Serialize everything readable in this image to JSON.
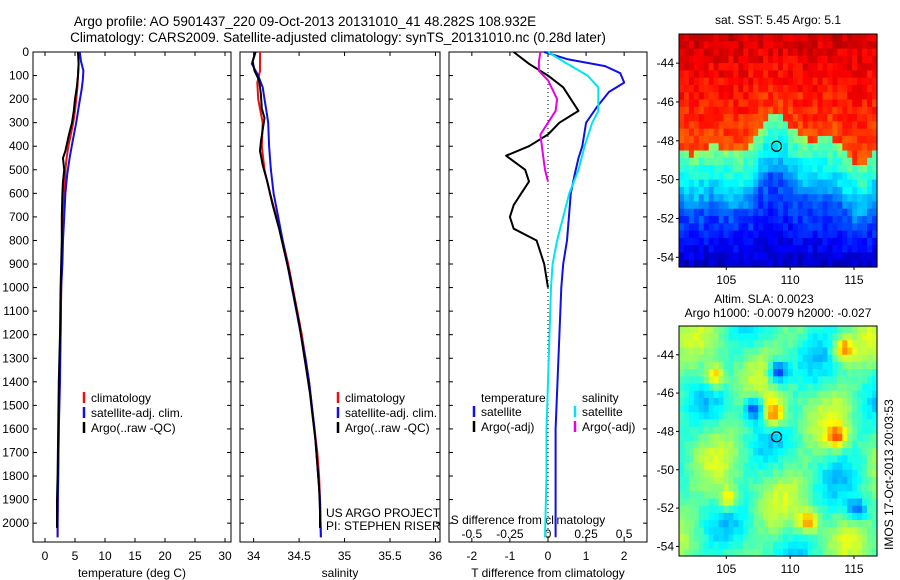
{
  "header": {
    "line1": "Argo profile: AO 5901437_220 09-Oct-2013 20131010_41 48.282S 108.932E",
    "line2": "Climatology: CARS2009. Satellite-adjusted climatology: synTS_20131010.nc (0.28d later)"
  },
  "side_stamp": "IMOS 17-Oct-2013 20:03:53",
  "colors": {
    "climatology": "#e81010",
    "satellite": "#1010e6",
    "argo": "#000000",
    "sat_salinity": "#00e5ee",
    "argo_salinity": "#e800e8"
  },
  "chart_data": [
    {
      "type": "line",
      "xlabel": "temperature (deg C)",
      "ylabel": "",
      "xlim": [
        -2,
        31
      ],
      "ylim": [
        2080,
        0
      ],
      "xticks": [
        0,
        5,
        10,
        15,
        20,
        25,
        30
      ],
      "yticks": [
        0,
        100,
        200,
        300,
        400,
        500,
        600,
        700,
        800,
        900,
        1000,
        1100,
        1200,
        1300,
        1400,
        1500,
        1600,
        1700,
        1800,
        1900,
        2000
      ],
      "legend": [
        "climatology",
        "satellite-adj. clim.",
        "Argo(..raw -QC)"
      ],
      "legend_position": "lower-center",
      "series": [
        {
          "name": "climatology",
          "color": "#e81010",
          "points": [
            [
              5.6,
              0
            ],
            [
              5.6,
              50
            ],
            [
              5.5,
              100
            ],
            [
              5.4,
              150
            ],
            [
              5.2,
              200
            ],
            [
              5.0,
              250
            ],
            [
              4.7,
              300
            ],
            [
              4.3,
              350
            ],
            [
              3.9,
              400
            ],
            [
              3.6,
              450
            ],
            [
              3.4,
              500
            ],
            [
              3.2,
              600
            ],
            [
              3.0,
              700
            ],
            [
              2.9,
              800
            ],
            [
              2.8,
              900
            ],
            [
              2.7,
              1000
            ],
            [
              2.6,
              1200
            ],
            [
              2.4,
              1400
            ],
            [
              2.3,
              1600
            ],
            [
              2.2,
              1800
            ],
            [
              2.1,
              2000
            ],
            [
              2.1,
              2060
            ]
          ]
        },
        {
          "name": "satellite-adj. clim.",
          "color": "#1010e6",
          "points": [
            [
              5.8,
              0
            ],
            [
              6.0,
              40
            ],
            [
              6.4,
              80
            ],
            [
              6.3,
              120
            ],
            [
              6.1,
              160
            ],
            [
              5.7,
              220
            ],
            [
              5.2,
              300
            ],
            [
              4.6,
              380
            ],
            [
              4.1,
              450
            ],
            [
              3.7,
              520
            ],
            [
              3.4,
              600
            ],
            [
              3.2,
              700
            ],
            [
              3.0,
              800
            ],
            [
              2.9,
              900
            ],
            [
              2.7,
              1000
            ],
            [
              2.6,
              1200
            ],
            [
              2.5,
              1400
            ],
            [
              2.3,
              1600
            ],
            [
              2.2,
              1800
            ],
            [
              2.1,
              2000
            ],
            [
              2.1,
              2060
            ]
          ]
        },
        {
          "name": "Argo(..raw -QC)",
          "color": "#000000",
          "points": [
            [
              5.5,
              0
            ],
            [
              5.6,
              50
            ],
            [
              5.5,
              100
            ],
            [
              5.3,
              150
            ],
            [
              5.0,
              200
            ],
            [
              4.8,
              250
            ],
            [
              4.5,
              300
            ],
            [
              4.0,
              350
            ],
            [
              3.4,
              420
            ],
            [
              3.0,
              450
            ],
            [
              3.2,
              500
            ],
            [
              3.0,
              550
            ],
            [
              2.9,
              600
            ],
            [
              2.8,
              700
            ],
            [
              2.8,
              800
            ],
            [
              2.7,
              900
            ],
            [
              2.6,
              1000
            ],
            [
              2.5,
              1200
            ],
            [
              2.3,
              1400
            ],
            [
              2.2,
              1600
            ],
            [
              2.1,
              1800
            ],
            [
              2.0,
              1900
            ],
            [
              2.0,
              2020
            ]
          ]
        }
      ]
    },
    {
      "type": "line",
      "xlabel": "salinity",
      "ylabel": "",
      "xlim": [
        33.85,
        36.05
      ],
      "ylim": [
        2080,
        0
      ],
      "xticks": [
        34,
        34.5,
        35,
        35.5,
        36
      ],
      "xticklabels": [
        "34",
        "34.5",
        "35",
        "35.5",
        "36"
      ],
      "legend": [
        "climatology",
        "satellite-adj. clim.",
        "Argo(..raw -QC)"
      ],
      "legend_position": "lower-right",
      "annotation": [
        "US ARGO PROJECT",
        "PI: STEPHEN RISER"
      ],
      "series": [
        {
          "name": "climatology",
          "color": "#e81010",
          "points": [
            [
              34.07,
              0
            ],
            [
              34.07,
              80
            ],
            [
              34.04,
              130
            ],
            [
              34.05,
              200
            ],
            [
              34.08,
              260
            ],
            [
              34.1,
              300
            ],
            [
              34.09,
              400
            ],
            [
              34.12,
              500
            ],
            [
              34.18,
              600
            ],
            [
              34.25,
              700
            ],
            [
              34.32,
              800
            ],
            [
              34.38,
              900
            ],
            [
              34.43,
              1000
            ],
            [
              34.48,
              1100
            ],
            [
              34.53,
              1200
            ],
            [
              34.57,
              1300
            ],
            [
              34.61,
              1400
            ],
            [
              34.64,
              1500
            ],
            [
              34.67,
              1600
            ],
            [
              34.7,
              1700
            ],
            [
              34.72,
              1800
            ],
            [
              34.73,
              1900
            ],
            [
              34.74,
              2060
            ]
          ]
        },
        {
          "name": "satellite-adj. clim.",
          "color": "#1010e6",
          "points": [
            [
              34.02,
              0
            ],
            [
              33.98,
              50
            ],
            [
              34.05,
              100
            ],
            [
              34.1,
              150
            ],
            [
              34.12,
              200
            ],
            [
              34.14,
              250
            ],
            [
              34.16,
              300
            ],
            [
              34.17,
              400
            ],
            [
              34.19,
              500
            ],
            [
              34.22,
              600
            ],
            [
              34.27,
              700
            ],
            [
              34.32,
              800
            ],
            [
              34.37,
              900
            ],
            [
              34.42,
              1000
            ],
            [
              34.47,
              1100
            ],
            [
              34.52,
              1200
            ],
            [
              34.57,
              1300
            ],
            [
              34.61,
              1400
            ],
            [
              34.64,
              1500
            ],
            [
              34.67,
              1600
            ],
            [
              34.69,
              1700
            ],
            [
              34.71,
              1800
            ],
            [
              34.73,
              1900
            ],
            [
              34.74,
              2060
            ]
          ]
        },
        {
          "name": "Argo(..raw -QC)",
          "color": "#000000",
          "points": [
            [
              34.02,
              0
            ],
            [
              33.99,
              40
            ],
            [
              34.01,
              80
            ],
            [
              34.06,
              120
            ],
            [
              34.08,
              180
            ],
            [
              34.09,
              240
            ],
            [
              34.12,
              280
            ],
            [
              34.08,
              380
            ],
            [
              34.07,
              420
            ],
            [
              34.1,
              480
            ],
            [
              34.15,
              550
            ],
            [
              34.21,
              650
            ],
            [
              34.28,
              750
            ],
            [
              34.34,
              850
            ],
            [
              34.4,
              950
            ],
            [
              34.45,
              1050
            ],
            [
              34.5,
              1150
            ],
            [
              34.54,
              1250
            ],
            [
              34.58,
              1350
            ],
            [
              34.62,
              1450
            ],
            [
              34.65,
              1550
            ],
            [
              34.68,
              1650
            ],
            [
              34.7,
              1750
            ],
            [
              34.72,
              1850
            ],
            [
              34.73,
              1950
            ],
            [
              34.73,
              2020
            ]
          ]
        }
      ]
    },
    {
      "type": "line",
      "xlabel": "T difference from climatology",
      "x2label": "S difference from climatology",
      "ylabel": "",
      "xlim": [
        -2.6,
        2.6
      ],
      "ylim": [
        2080,
        0
      ],
      "xticks": [
        -2,
        -1,
        0,
        1,
        2
      ],
      "x2ticks": [
        -0.5,
        -0.25,
        0,
        0.25,
        0.5
      ],
      "x2ticklabels": [
        "-0.5",
        "-0.25",
        "0",
        "0.25",
        "0.5"
      ],
      "legend_groups": [
        {
          "title": "temperature",
          "entries": [
            "satellite",
            "Argo(-adj)"
          ]
        },
        {
          "title": "salinity",
          "entries": [
            "satellite",
            "Argo(-adj)"
          ]
        }
      ],
      "legend_position": "lower-center",
      "series": [
        {
          "name": "temperature satellite",
          "color": "#1010e6",
          "points": [
            [
              -0.1,
              0
            ],
            [
              0.5,
              30
            ],
            [
              1.5,
              60
            ],
            [
              1.9,
              90
            ],
            [
              2.0,
              130
            ],
            [
              1.6,
              170
            ],
            [
              1.3,
              230
            ],
            [
              1.0,
              300
            ],
            [
              0.9,
              400
            ],
            [
              0.8,
              450
            ],
            [
              0.7,
              520
            ],
            [
              0.6,
              600
            ],
            [
              0.55,
              700
            ],
            [
              0.5,
              800
            ],
            [
              0.4,
              900
            ],
            [
              0.35,
              1000
            ],
            [
              0.3,
              1200
            ],
            [
              0.25,
              1400
            ],
            [
              0.2,
              1600
            ],
            [
              0.2,
              1800
            ],
            [
              0.2,
              2060
            ]
          ]
        },
        {
          "name": "temperature Argo(-adj)",
          "color": "#000000",
          "points": [
            [
              -0.9,
              0
            ],
            [
              -0.5,
              50
            ],
            [
              0.0,
              100
            ],
            [
              0.4,
              150
            ],
            [
              0.6,
              200
            ],
            [
              0.8,
              250
            ],
            [
              0.3,
              300
            ],
            [
              0.0,
              350
            ],
            [
              -0.5,
              400
            ],
            [
              -1.1,
              440
            ],
            [
              -0.6,
              500
            ],
            [
              -0.5,
              550
            ],
            [
              -0.7,
              600
            ],
            [
              -0.9,
              650
            ],
            [
              -1.0,
              700
            ],
            [
              -0.9,
              750
            ],
            [
              -0.3,
              800
            ],
            [
              -0.2,
              850
            ],
            [
              -0.1,
              900
            ],
            [
              0.0,
              1000
            ]
          ]
        },
        {
          "name": "salinity satellite",
          "color": "#00e5ee",
          "points": [
            [
              0.0,
              0
            ],
            [
              0.1,
              40
            ],
            [
              0.26,
              100
            ],
            [
              0.33,
              150
            ],
            [
              0.33,
              250
            ],
            [
              0.29,
              300
            ],
            [
              0.24,
              400
            ],
            [
              0.2,
              500
            ],
            [
              0.14,
              600
            ],
            [
              0.1,
              700
            ],
            [
              0.06,
              800
            ],
            [
              0.03,
              900
            ],
            [
              0.02,
              1000
            ],
            [
              0.01,
              1200
            ],
            [
              0.0,
              1400
            ],
            [
              -0.01,
              1600
            ],
            [
              -0.01,
              1800
            ],
            [
              -0.02,
              2060
            ]
          ]
        },
        {
          "name": "salinity Argo(-adj)",
          "color": "#e800e8",
          "points": [
            [
              -0.05,
              0
            ],
            [
              -0.06,
              40
            ],
            [
              -0.06,
              80
            ],
            [
              0.0,
              120
            ],
            [
              0.03,
              160
            ],
            [
              0.06,
              200
            ],
            [
              0.05,
              250
            ],
            [
              0.0,
              300
            ],
            [
              -0.05,
              350
            ],
            [
              -0.04,
              400
            ],
            [
              -0.03,
              450
            ],
            [
              -0.02,
              500
            ],
            [
              0.0,
              550
            ]
          ]
        }
      ]
    },
    {
      "type": "heatmap",
      "title": "sat. SST: 5.45  Argo: 5.1",
      "xlim": [
        101.3,
        116.8
      ],
      "ylim": [
        -54.5,
        -42.5
      ],
      "xticks": [
        105,
        110,
        115
      ],
      "yticks": [
        -44,
        -46,
        -48,
        -50,
        -52,
        -54
      ],
      "colormap": "jet",
      "marker": {
        "lon": 108.932,
        "lat": -48.282
      }
    },
    {
      "type": "heatmap",
      "title_lines": [
        "Altim. SLA: 0.0023",
        "Argo h1000: -0.0079 h2000: -0.027"
      ],
      "xlim": [
        101.3,
        116.8
      ],
      "ylim": [
        -54.5,
        -42.5
      ],
      "xticks": [
        105,
        110,
        115
      ],
      "yticks": [
        -44,
        -46,
        -48,
        -50,
        -52,
        -54
      ],
      "colormap": "jet",
      "marker": {
        "lon": 108.932,
        "lat": -48.282
      }
    }
  ]
}
